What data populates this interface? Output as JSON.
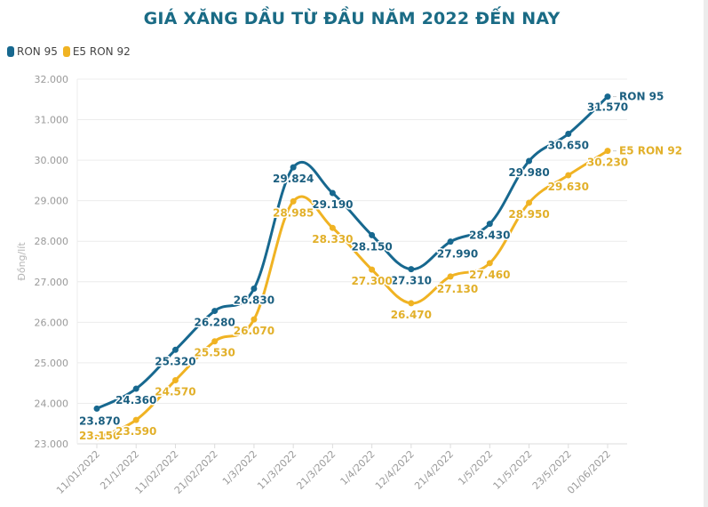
{
  "chart_data": {
    "type": "line",
    "title": "GIÁ XĂNG DẦU TỪ ĐẦU NĂM 2022 ĐẾN NAY",
    "xlabel": "",
    "ylabel": "Đồng/lít",
    "ylim": [
      23000,
      32000
    ],
    "yticks": [
      23000,
      24000,
      25000,
      26000,
      27000,
      28000,
      29000,
      30000,
      31000,
      32000
    ],
    "ytick_labels": [
      "23.000",
      "24.000",
      "25.000",
      "26.000",
      "27.000",
      "28.000",
      "29.000",
      "30.000",
      "31.000",
      "32.000"
    ],
    "grid": true,
    "legend_position": "top-left",
    "categories": [
      "11/01/2022",
      "21/1/2022",
      "11/02/2022",
      "21/02/2022",
      "1/3/2022",
      "11/3/2022",
      "21/3/2022",
      "1/4/2022",
      "12/4/2022",
      "21/4/2022",
      "1/5/2022",
      "11/5/2022",
      "23/5/2022",
      "01/06/2022"
    ],
    "series": [
      {
        "name": "RON 95",
        "end_label": "RON 95",
        "color": "#17688f",
        "values": [
          23870,
          24360,
          25320,
          26280,
          26830,
          29824,
          29190,
          28150,
          27310,
          27990,
          28430,
          29980,
          30650,
          31570
        ],
        "labels": [
          "23.870",
          "24.360",
          "25.320",
          "26.280",
          "26.830",
          "29.824",
          "29.190",
          "28.150",
          "27.310",
          "27.990",
          "28.430",
          "29.980",
          "30.650",
          "31.570"
        ]
      },
      {
        "name": "E5 RON 92",
        "end_label": "E5 RON 92",
        "color": "#f0b323",
        "values": [
          23150,
          23590,
          24570,
          25530,
          26070,
          28985,
          28330,
          27300,
          26470,
          27130,
          27460,
          28950,
          29630,
          30230
        ],
        "labels": [
          "23.150",
          "23.590",
          "24.570",
          "25.530",
          "26.070",
          "28.985",
          "28.330",
          "27.300",
          "26.470",
          "27.130",
          "27.460",
          "28.950",
          "29.630",
          "30.230"
        ]
      }
    ]
  },
  "colors": {
    "title": "#1a6b85",
    "ron95_label": "#1b5f80",
    "e5_label": "#e2b02a",
    "grid": "#e8e8e8"
  }
}
